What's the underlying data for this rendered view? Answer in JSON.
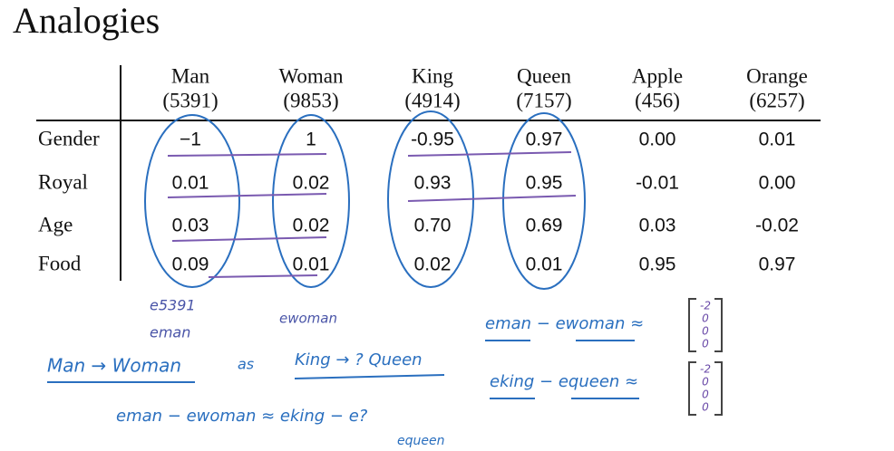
{
  "title": "Analogies",
  "table": {
    "columns": [
      {
        "name": "Man",
        "index": "(5391)"
      },
      {
        "name": "Woman",
        "index": "(9853)"
      },
      {
        "name": "King",
        "index": "(4914)"
      },
      {
        "name": "Queen",
        "index": "(7157)"
      },
      {
        "name": "Apple",
        "index": "(456)"
      },
      {
        "name": "Orange",
        "index": "(6257)"
      }
    ],
    "rows": [
      {
        "label": "Gender",
        "values": [
          "−1",
          "1",
          "-0.95",
          "0.97",
          "0.00",
          "0.01"
        ]
      },
      {
        "label": "Royal",
        "values": [
          "0.01",
          "0.02",
          "0.93",
          "0.95",
          "-0.01",
          "0.00"
        ]
      },
      {
        "label": "Age",
        "values": [
          "0.03",
          "0.02",
          "0.70",
          "0.69",
          "0.03",
          "-0.02"
        ]
      },
      {
        "label": "Food",
        "values": [
          "0.09",
          "0.01",
          "0.02",
          "0.01",
          "0.95",
          "0.97"
        ]
      }
    ]
  },
  "notes": {
    "e5391": "e5391",
    "eman": "eman",
    "ewoman": "ewoman",
    "diff1": "eman − ewoman ≈",
    "vector1": [
      "-2",
      "0",
      "0",
      "0"
    ],
    "analogy_left": "Man → Woman",
    "as": "as",
    "analogy_right": "King → ? Queen",
    "diff2": "eking − equeen ≈",
    "vector2": [
      "-2",
      "0",
      "0",
      "0"
    ],
    "equation": "eman − ewoman ≈ eking − e?",
    "equeen": "equeen"
  }
}
